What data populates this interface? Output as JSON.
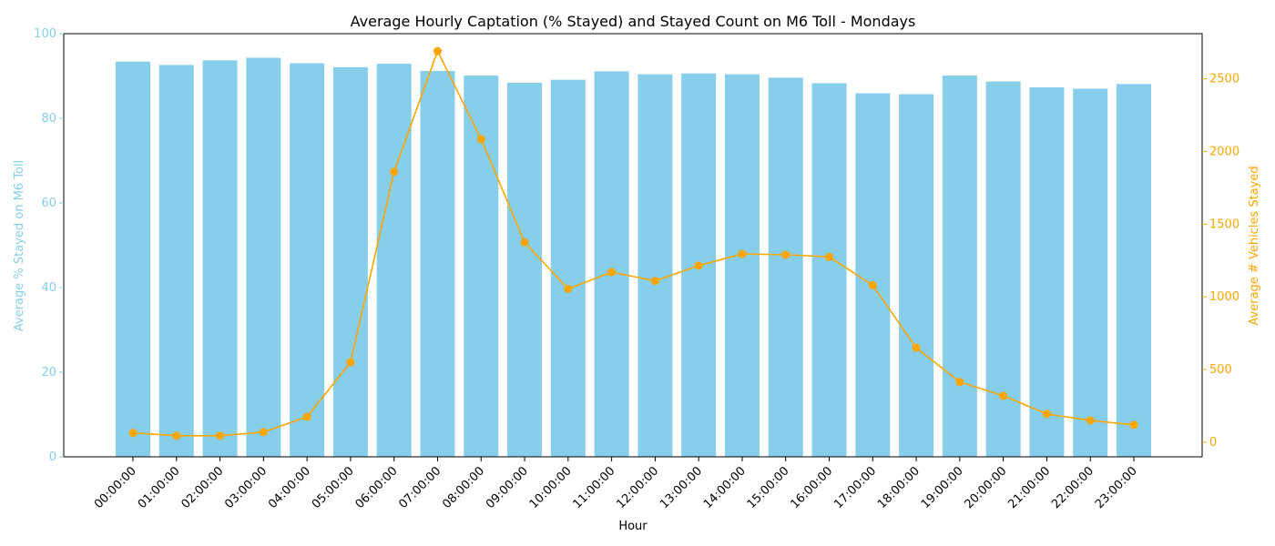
{
  "chart_data": {
    "type": "bar+line",
    "title": "Average Hourly Captation (% Stayed) and Stayed Count on M6 Toll - Mondays",
    "xlabel": "Hour",
    "ylabel_left": "Average % Stayed on M6 Toll",
    "ylabel_right": "Average # Vehicles Stayed",
    "categories": [
      "00:00:00",
      "01:00:00",
      "02:00:00",
      "03:00:00",
      "04:00:00",
      "05:00:00",
      "06:00:00",
      "07:00:00",
      "08:00:00",
      "09:00:00",
      "10:00:00",
      "11:00:00",
      "12:00:00",
      "13:00:00",
      "14:00:00",
      "15:00:00",
      "16:00:00",
      "17:00:00",
      "18:00:00",
      "19:00:00",
      "20:00:00",
      "21:00:00",
      "22:00:00",
      "23:00:00"
    ],
    "series": [
      {
        "kind": "bar",
        "axis": "left",
        "color": "#87CEEB",
        "values": [
          93.4,
          92.6,
          93.7,
          94.3,
          93.0,
          92.1,
          92.9,
          91.2,
          90.1,
          88.4,
          89.1,
          91.1,
          90.4,
          90.6,
          90.4,
          89.6,
          88.3,
          85.9,
          85.7,
          90.1,
          88.7,
          87.3,
          87.0,
          88.1
        ]
      },
      {
        "kind": "line",
        "axis": "right",
        "color": "#FFA500",
        "values": [
          65,
          45,
          45,
          70,
          175,
          550,
          1860,
          2690,
          2085,
          1375,
          1055,
          1170,
          1110,
          1215,
          1295,
          1290,
          1275,
          1080,
          650,
          415,
          320,
          195,
          150,
          120
        ]
      }
    ],
    "ylim_left": [
      0,
      100
    ],
    "ylim_right": [
      -100,
      2810
    ],
    "yticks_left": [
      0,
      20,
      40,
      60,
      80,
      100
    ],
    "yticks_right": [
      0,
      500,
      1000,
      1500,
      2000,
      2500
    ],
    "grid": false,
    "legend": "none"
  }
}
